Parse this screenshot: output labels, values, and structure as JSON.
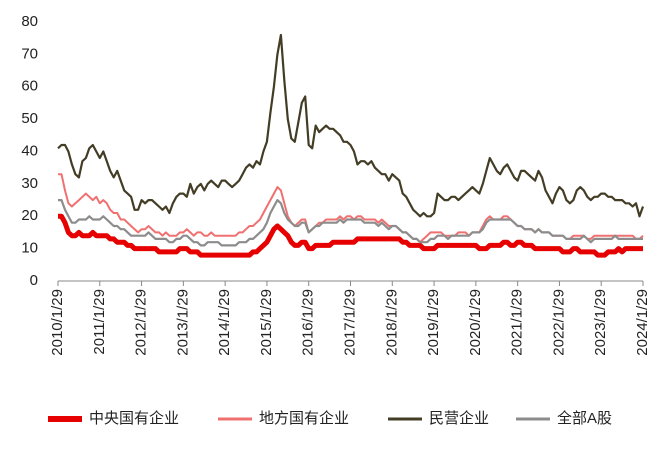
{
  "chart_data": {
    "type": "line",
    "categories": [
      "2010/1/29",
      null,
      null,
      null,
      null,
      null,
      null,
      null,
      null,
      null,
      null,
      null,
      "2011/1/29",
      null,
      null,
      null,
      null,
      null,
      null,
      null,
      null,
      null,
      null,
      null,
      "2012/1/29",
      null,
      null,
      null,
      null,
      null,
      null,
      null,
      null,
      null,
      null,
      null,
      "2013/1/29",
      null,
      null,
      null,
      null,
      null,
      null,
      null,
      null,
      null,
      null,
      null,
      "2014/1/29",
      null,
      null,
      null,
      null,
      null,
      null,
      null,
      null,
      null,
      null,
      null,
      "2015/1/29",
      null,
      null,
      null,
      null,
      null,
      null,
      null,
      null,
      null,
      null,
      null,
      "2016/1/29",
      null,
      null,
      null,
      null,
      null,
      null,
      null,
      null,
      null,
      null,
      null,
      "2017/1/29",
      null,
      null,
      null,
      null,
      null,
      null,
      null,
      null,
      null,
      null,
      null,
      "2018/1/29",
      null,
      null,
      null,
      null,
      null,
      null,
      null,
      null,
      null,
      null,
      null,
      "2019/1/29",
      null,
      null,
      null,
      null,
      null,
      null,
      null,
      null,
      null,
      null,
      null,
      "2020/1/29",
      null,
      null,
      null,
      null,
      null,
      null,
      null,
      null,
      null,
      null,
      null,
      "2021/1/29",
      null,
      null,
      null,
      null,
      null,
      null,
      null,
      null,
      null,
      null,
      null,
      "2022/1/29",
      null,
      null,
      null,
      null,
      null,
      null,
      null,
      null,
      null,
      null,
      null,
      "2023/1/29",
      null,
      null,
      null,
      null,
      null,
      null,
      null,
      null,
      null,
      null,
      null,
      "2024/1/29"
    ],
    "series": [
      {
        "name": "中央国有企业",
        "color": "#e60000",
        "width": 5,
        "values": [
          20,
          20,
          18,
          15,
          14,
          14,
          15,
          14,
          14,
          14,
          15,
          14,
          14,
          14,
          14,
          13,
          13,
          12,
          12,
          12,
          11,
          11,
          10,
          10,
          10,
          10,
          10,
          10,
          10,
          9,
          9,
          9,
          9,
          9,
          9,
          10,
          10,
          10,
          9,
          9,
          9,
          8,
          8,
          8,
          8,
          8,
          8,
          8,
          8,
          8,
          8,
          8,
          8,
          8,
          8,
          8,
          9,
          9,
          10,
          11,
          12,
          14,
          16,
          17,
          16,
          15,
          14,
          12,
          11,
          11,
          12,
          12,
          10,
          10,
          11,
          11,
          11,
          11,
          11,
          12,
          12,
          12,
          12,
          12,
          12,
          12,
          13,
          13,
          13,
          13,
          13,
          13,
          13,
          13,
          13,
          13,
          13,
          13,
          13,
          12,
          12,
          11,
          11,
          11,
          11,
          10,
          10,
          10,
          10,
          11,
          11,
          11,
          11,
          11,
          11,
          11,
          11,
          11,
          11,
          11,
          11,
          10,
          10,
          10,
          11,
          11,
          11,
          11,
          12,
          12,
          11,
          11,
          12,
          12,
          11,
          11,
          11,
          10,
          10,
          10,
          10,
          10,
          10,
          10,
          10,
          9,
          9,
          9,
          10,
          10,
          9,
          9,
          9,
          9,
          9,
          8,
          8,
          8,
          9,
          9,
          9,
          10,
          9,
          10,
          10,
          10,
          10,
          10,
          10
        ]
      },
      {
        "name": "地方国有企业",
        "color": "#f07070",
        "width": 2,
        "values": [
          33,
          33,
          28,
          24,
          23,
          24,
          25,
          26,
          27,
          26,
          25,
          26,
          24,
          25,
          24,
          22,
          21,
          21,
          19,
          19,
          18,
          17,
          16,
          15,
          16,
          16,
          17,
          16,
          15,
          15,
          14,
          15,
          14,
          14,
          14,
          15,
          15,
          16,
          15,
          14,
          15,
          15,
          14,
          14,
          15,
          14,
          14,
          14,
          14,
          14,
          14,
          14,
          15,
          15,
          16,
          17,
          17,
          18,
          19,
          21,
          23,
          25,
          27,
          29,
          28,
          24,
          20,
          18,
          17,
          18,
          19,
          19,
          15,
          16,
          17,
          18,
          18,
          19,
          19,
          19,
          19,
          20,
          19,
          20,
          20,
          19,
          20,
          20,
          19,
          19,
          19,
          19,
          18,
          19,
          18,
          17,
          17,
          17,
          16,
          15,
          15,
          14,
          13,
          13,
          12,
          13,
          14,
          15,
          15,
          15,
          15,
          14,
          14,
          14,
          14,
          15,
          15,
          15,
          14,
          15,
          15,
          15,
          17,
          19,
          20,
          19,
          19,
          19,
          20,
          20,
          19,
          18,
          17,
          17,
          16,
          16,
          16,
          15,
          16,
          15,
          15,
          15,
          14,
          14,
          14,
          14,
          13,
          13,
          14,
          14,
          14,
          14,
          13,
          13,
          14,
          14,
          14,
          14,
          14,
          14,
          14,
          14,
          14,
          14,
          14,
          14,
          13,
          13,
          14
        ]
      },
      {
        "name": "民营企业",
        "color": "#433d26",
        "width": 2.2,
        "values": [
          41,
          42,
          42,
          40,
          36,
          33,
          32,
          37,
          38,
          41,
          42,
          40,
          38,
          40,
          37,
          34,
          32,
          34,
          31,
          28,
          27,
          26,
          22,
          22,
          25,
          24,
          25,
          25,
          24,
          23,
          22,
          23,
          21,
          24,
          26,
          27,
          27,
          26,
          30,
          27,
          29,
          30,
          28,
          30,
          31,
          30,
          29,
          31,
          31,
          30,
          29,
          30,
          31,
          33,
          35,
          36,
          35,
          37,
          36,
          40,
          43,
          52,
          60,
          70,
          76,
          62,
          50,
          44,
          43,
          49,
          55,
          57,
          42,
          41,
          48,
          46,
          47,
          48,
          47,
          47,
          46,
          45,
          43,
          43,
          42,
          40,
          36,
          37,
          37,
          36,
          37,
          35,
          34,
          33,
          33,
          31,
          33,
          32,
          31,
          27,
          26,
          24,
          22,
          21,
          20,
          21,
          20,
          20,
          21,
          27,
          26,
          25,
          25,
          26,
          26,
          25,
          26,
          27,
          28,
          29,
          28,
          27,
          30,
          34,
          38,
          36,
          34,
          33,
          35,
          36,
          34,
          32,
          31,
          34,
          34,
          33,
          32,
          31,
          34,
          32,
          28,
          26,
          24,
          27,
          29,
          28,
          25,
          24,
          25,
          28,
          29,
          28,
          26,
          25,
          26,
          26,
          27,
          27,
          26,
          26,
          25,
          25,
          25,
          24,
          24,
          23,
          24,
          20,
          23
        ]
      },
      {
        "name": "全部A股",
        "color": "#8c8c8c",
        "width": 2.2,
        "values": [
          25,
          25,
          22,
          20,
          18,
          18,
          19,
          19,
          19,
          20,
          19,
          19,
          19,
          20,
          19,
          18,
          17,
          17,
          16,
          16,
          15,
          14,
          14,
          14,
          14,
          14,
          15,
          14,
          13,
          13,
          13,
          13,
          12,
          12,
          13,
          13,
          14,
          14,
          13,
          12,
          12,
          11,
          11,
          12,
          12,
          12,
          12,
          11,
          11,
          11,
          11,
          11,
          12,
          12,
          12,
          13,
          13,
          14,
          15,
          16,
          18,
          21,
          23,
          25,
          24,
          21,
          19,
          18,
          17,
          17,
          18,
          18,
          15,
          16,
          17,
          17,
          18,
          18,
          18,
          18,
          18,
          19,
          18,
          19,
          19,
          19,
          19,
          19,
          18,
          18,
          18,
          18,
          17,
          18,
          17,
          16,
          17,
          17,
          16,
          15,
          15,
          14,
          13,
          13,
          12,
          12,
          12,
          13,
          13,
          14,
          14,
          14,
          13,
          14,
          14,
          14,
          14,
          14,
          14,
          15,
          15,
          15,
          16,
          18,
          19,
          19,
          19,
          19,
          19,
          19,
          19,
          18,
          17,
          17,
          16,
          16,
          16,
          15,
          16,
          15,
          15,
          15,
          14,
          14,
          14,
          14,
          13,
          13,
          13,
          13,
          13,
          14,
          13,
          12,
          13,
          13,
          13,
          13,
          13,
          13,
          14,
          13,
          13,
          13,
          13,
          13,
          13,
          13,
          13
        ]
      }
    ],
    "ylim": [
      0,
      80
    ],
    "yticks": [
      0,
      10,
      20,
      30,
      40,
      50,
      60,
      70,
      80
    ],
    "grid": false,
    "legend": "bottom"
  }
}
